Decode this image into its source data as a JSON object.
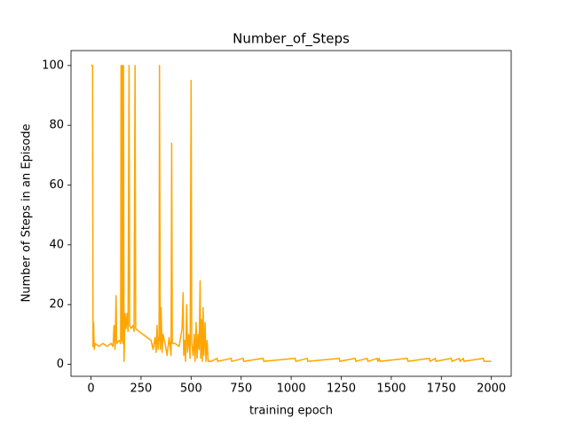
{
  "chart_data": {
    "type": "line",
    "title": "Number_of_Steps",
    "x_label": "training epoch",
    "y_label": "Number of Steps in an Episode",
    "color": "orange",
    "x": [
      0,
      8,
      10,
      13,
      16,
      20,
      40,
      60,
      80,
      100,
      110,
      115,
      120,
      125,
      128,
      140,
      148,
      150,
      153,
      156,
      159,
      162,
      165,
      170,
      175,
      180,
      185,
      190,
      193,
      200,
      210,
      215,
      220,
      223,
      240,
      260,
      280,
      300,
      310,
      320,
      325,
      330,
      335,
      340,
      342,
      346,
      350,
      355,
      360,
      370,
      380,
      390,
      400,
      403,
      406,
      420,
      440,
      455,
      460,
      463,
      468,
      472,
      478,
      482,
      488,
      495,
      500,
      503,
      510,
      515,
      520,
      525,
      530,
      535,
      540,
      545,
      548,
      552,
      556,
      560,
      564,
      570,
      574,
      580,
      585,
      600,
      630,
      633,
      700,
      703,
      760,
      763,
      860,
      863,
      1020,
      1023,
      1080,
      1083,
      1240,
      1243,
      1320,
      1323,
      1380,
      1383,
      1430,
      1433,
      1440,
      1443,
      1580,
      1583,
      1690,
      1693,
      1720,
      1723,
      1800,
      1803,
      1840,
      1843,
      1860,
      1863,
      1960,
      1963,
      1999
    ],
    "values": [
      100,
      100,
      6,
      14,
      5,
      7,
      6,
      7,
      6,
      7,
      6,
      13,
      5,
      23,
      7,
      8,
      7,
      100,
      8,
      100,
      7,
      100,
      1,
      17,
      12,
      17,
      11,
      100,
      13,
      12,
      13,
      11,
      100,
      12,
      11,
      10,
      9,
      8,
      5,
      9,
      4,
      13,
      5,
      9,
      100,
      5,
      19,
      4,
      10,
      7,
      3,
      9,
      3,
      74,
      7,
      7,
      6,
      12,
      24,
      3,
      8,
      1,
      20,
      4,
      10,
      2,
      95,
      7,
      3,
      10,
      1,
      14,
      2,
      10,
      5,
      28,
      2,
      15,
      1,
      19,
      3,
      14,
      1,
      8,
      1,
      1,
      2,
      1,
      2,
      1,
      2,
      1,
      2,
      1,
      2,
      1,
      2,
      1,
      2,
      1,
      2,
      1,
      2,
      1,
      2,
      1,
      2,
      1,
      2,
      1,
      2,
      1,
      2,
      1,
      2,
      1,
      2,
      1,
      2,
      1,
      2,
      1,
      1
    ],
    "xlim": [
      -100,
      2099
    ],
    "ylim": [
      -4,
      105
    ],
    "xticks": [
      0,
      250,
      500,
      750,
      1000,
      1250,
      1500,
      1750,
      2000
    ],
    "yticks": [
      0,
      20,
      40,
      60,
      80,
      100
    ]
  }
}
